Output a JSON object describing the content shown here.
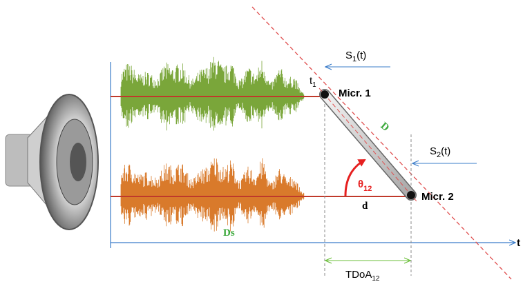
{
  "diagram": {
    "t1": {
      "base": "t",
      "sub": "1"
    },
    "mic1": "Micr. 1",
    "rod": "D",
    "s1": {
      "base": "S",
      "sub": "1",
      "rest": "(t)"
    },
    "s2": {
      "base": "S",
      "sub": "2",
      "rest": "(t)"
    },
    "theta": {
      "base": "θ",
      "sub": "12"
    },
    "mic2": "Micr. 2",
    "d": "d",
    "ds": "Ds",
    "time": "t",
    "tdoa": {
      "base": "TDoA",
      "sub": "12"
    }
  }
}
